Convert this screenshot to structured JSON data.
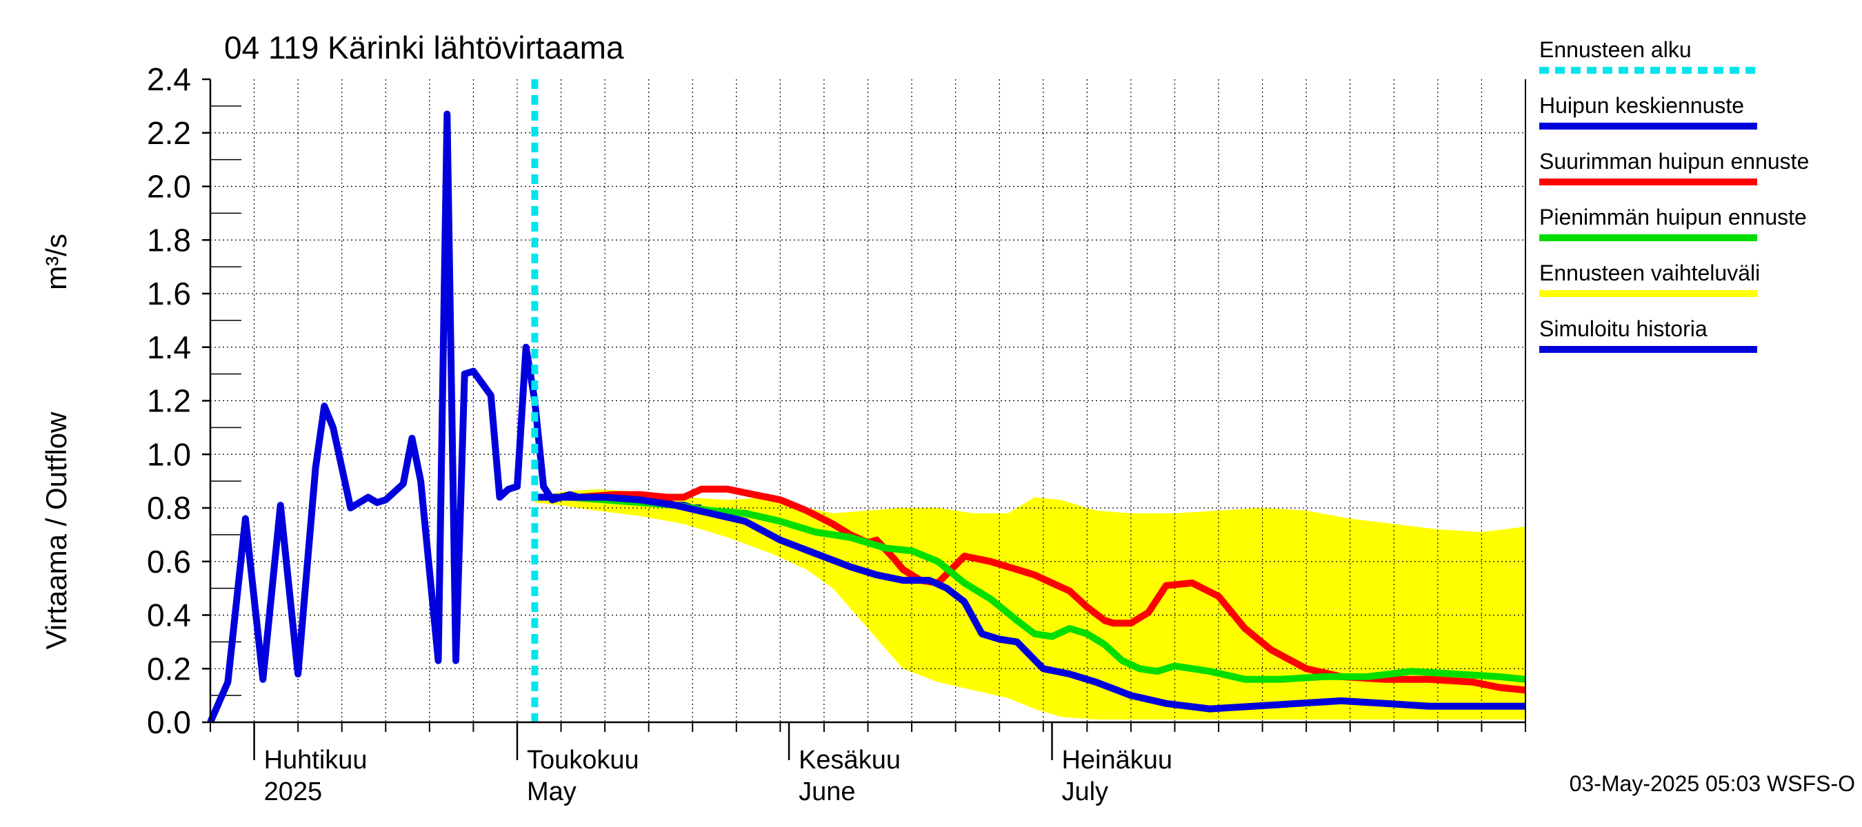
{
  "chart_data": {
    "type": "line",
    "title": "04 119 Kärinki lähtövirtaama",
    "ylabel": "Virtaama / Outflow",
    "yunit": "m³/s",
    "ylim": [
      0,
      2.4
    ],
    "yticks": [
      "0.0",
      "0.2",
      "0.4",
      "0.6",
      "0.8",
      "1.0",
      "1.2",
      "1.4",
      "1.6",
      "1.8",
      "2.0",
      "2.2",
      "2.4"
    ],
    "xlim": [
      "2025-03-27",
      "2025-08-24"
    ],
    "grid": true,
    "legend_position": "right",
    "month_labels": [
      {
        "date": "2025-04-01",
        "fi": "Huhtikuu",
        "en": "2025"
      },
      {
        "date": "2025-05-01",
        "fi": "Toukokuu",
        "en": "May"
      },
      {
        "date": "2025-06-01",
        "fi": "Kesäkuu",
        "en": "June"
      },
      {
        "date": "2025-07-01",
        "fi": "Heinäkuu",
        "en": "July"
      }
    ],
    "forecast_start": "2025-05-03",
    "footer": "03-May-2025 05:03 WSFS-O",
    "legend": [
      {
        "label": "Ennusteen alku",
        "color": "#00e5ee",
        "style": "dotted"
      },
      {
        "label": "Huipun keskiennuste",
        "color": "#0000dd",
        "style": "solid"
      },
      {
        "label": "Suurimman huipun ennuste",
        "color": "#ff0000",
        "style": "solid"
      },
      {
        "label": "Pienimmän huipun ennuste",
        "color": "#00dd00",
        "style": "solid"
      },
      {
        "label": "Ennusteen vaihteluväli",
        "color": "#ffff00",
        "style": "solid"
      },
      {
        "label": "Simuloitu historia",
        "color": "#0000dd",
        "style": "solid"
      }
    ],
    "band": {
      "name": "Ennusteen vaihteluväli",
      "color": "#ffff00",
      "x": [
        "2025-05-03",
        "2025-05-06",
        "2025-05-10",
        "2025-05-15",
        "2025-05-20",
        "2025-05-25",
        "2025-05-30",
        "2025-06-03",
        "2025-06-06",
        "2025-06-10",
        "2025-06-14",
        "2025-06-18",
        "2025-06-22",
        "2025-06-26",
        "2025-06-29",
        "2025-07-02",
        "2025-07-06",
        "2025-07-10",
        "2025-07-15",
        "2025-07-20",
        "2025-07-25",
        "2025-07-30",
        "2025-08-04",
        "2025-08-09",
        "2025-08-14",
        "2025-08-19",
        "2025-08-24"
      ],
      "upper": [
        0.84,
        0.86,
        0.87,
        0.86,
        0.84,
        0.83,
        0.84,
        0.8,
        0.78,
        0.79,
        0.8,
        0.8,
        0.78,
        0.78,
        0.84,
        0.83,
        0.79,
        0.78,
        0.78,
        0.79,
        0.8,
        0.79,
        0.76,
        0.74,
        0.72,
        0.71,
        0.73
      ],
      "lower": [
        0.82,
        0.81,
        0.79,
        0.77,
        0.74,
        0.69,
        0.63,
        0.57,
        0.5,
        0.35,
        0.2,
        0.15,
        0.12,
        0.09,
        0.05,
        0.02,
        0.01,
        0.01,
        0.01,
        0.01,
        0.01,
        0.01,
        0.01,
        0.01,
        0.01,
        0.01,
        0.01
      ]
    },
    "series": [
      {
        "name": "Simuloitu historia",
        "color": "#0000dd",
        "x": [
          "2025-03-27",
          "2025-03-29",
          "2025-03-31",
          "2025-04-02",
          "2025-04-04",
          "2025-04-06",
          "2025-04-08",
          "2025-04-09",
          "2025-04-10",
          "2025-04-12",
          "2025-04-13",
          "2025-04-14",
          "2025-04-15",
          "2025-04-16",
          "2025-04-18",
          "2025-04-19",
          "2025-04-20",
          "2025-04-22",
          "2025-04-23",
          "2025-04-24",
          "2025-04-25",
          "2025-04-26",
          "2025-04-28",
          "2025-04-29",
          "2025-04-30",
          "2025-05-01",
          "2025-05-02",
          "2025-05-03",
          "2025-05-04",
          "2025-05-05",
          "2025-05-06",
          "2025-05-07",
          "2025-05-08",
          "2025-05-09",
          "2025-05-10",
          "2025-05-11",
          "2025-05-12",
          "2025-05-14",
          "2025-05-15",
          "2025-05-16",
          "2025-05-17",
          "2025-05-18",
          "2025-05-19",
          "2025-05-20",
          "2025-05-21",
          "2025-05-22"
        ],
        "y": [
          0.0,
          0.15,
          0.76,
          0.16,
          0.81,
          0.18,
          0.95,
          1.18,
          1.1,
          0.8,
          0.82,
          0.84,
          0.82,
          0.83,
          0.89,
          1.06,
          0.9,
          0.23,
          2.27,
          0.23,
          1.3,
          1.31,
          1.22,
          0.84,
          0.87,
          0.88,
          1.4,
          1.2,
          0.88,
          0.83,
          0.84,
          0.85,
          0.84,
          0.84,
          0.84,
          0.83,
          0.83,
          0.83,
          0.83,
          0.82,
          0.82,
          0.82,
          0.81,
          0.81,
          0.8,
          0.8
        ]
      },
      {
        "name": "Suurimman huipun ennuste",
        "color": "#ff0000",
        "x": [
          "2025-05-03",
          "2025-05-05",
          "2025-05-08",
          "2025-05-12",
          "2025-05-15",
          "2025-05-18",
          "2025-05-20",
          "2025-05-22",
          "2025-05-25",
          "2025-05-28",
          "2025-05-31",
          "2025-06-03",
          "2025-06-06",
          "2025-06-08",
          "2025-06-10",
          "2025-06-11",
          "2025-06-13",
          "2025-06-14",
          "2025-06-16",
          "2025-06-18",
          "2025-06-21",
          "2025-06-24",
          "2025-06-27",
          "2025-06-29",
          "2025-07-01",
          "2025-07-03",
          "2025-07-05",
          "2025-07-07",
          "2025-07-08",
          "2025-07-10",
          "2025-07-12",
          "2025-07-14",
          "2025-07-17",
          "2025-07-20",
          "2025-07-23",
          "2025-07-26",
          "2025-07-30",
          "2025-08-03",
          "2025-08-08",
          "2025-08-13",
          "2025-08-18",
          "2025-08-21",
          "2025-08-24"
        ],
        "y": [
          0.84,
          0.84,
          0.84,
          0.85,
          0.85,
          0.84,
          0.84,
          0.87,
          0.87,
          0.85,
          0.83,
          0.79,
          0.74,
          0.7,
          0.67,
          0.68,
          0.61,
          0.57,
          0.53,
          0.52,
          0.62,
          0.6,
          0.57,
          0.55,
          0.52,
          0.49,
          0.43,
          0.38,
          0.37,
          0.37,
          0.41,
          0.51,
          0.52,
          0.47,
          0.35,
          0.27,
          0.2,
          0.17,
          0.16,
          0.16,
          0.15,
          0.13,
          0.12
        ]
      },
      {
        "name": "Pienimmän huipun ennuste",
        "color": "#00dd00",
        "x": [
          "2025-05-03",
          "2025-05-07",
          "2025-05-11",
          "2025-05-15",
          "2025-05-19",
          "2025-05-23",
          "2025-05-27",
          "2025-05-31",
          "2025-06-04",
          "2025-06-08",
          "2025-06-12",
          "2025-06-15",
          "2025-06-18",
          "2025-06-21",
          "2025-06-24",
          "2025-06-27",
          "2025-06-29",
          "2025-07-01",
          "2025-07-03",
          "2025-07-05",
          "2025-07-07",
          "2025-07-09",
          "2025-07-11",
          "2025-07-13",
          "2025-07-15",
          "2025-07-19",
          "2025-07-23",
          "2025-07-27",
          "2025-08-01",
          "2025-08-06",
          "2025-08-11",
          "2025-08-16",
          "2025-08-21",
          "2025-08-24"
        ],
        "y": [
          0.84,
          0.84,
          0.83,
          0.82,
          0.81,
          0.79,
          0.78,
          0.75,
          0.71,
          0.69,
          0.65,
          0.64,
          0.6,
          0.52,
          0.46,
          0.38,
          0.33,
          0.32,
          0.35,
          0.33,
          0.29,
          0.23,
          0.2,
          0.19,
          0.21,
          0.19,
          0.16,
          0.16,
          0.17,
          0.17,
          0.19,
          0.18,
          0.17,
          0.16
        ]
      },
      {
        "name": "Huipun keskiennuste",
        "color": "#0000dd",
        "x": [
          "2025-05-03",
          "2025-05-07",
          "2025-05-11",
          "2025-05-15",
          "2025-05-19",
          "2025-05-23",
          "2025-05-27",
          "2025-05-31",
          "2025-06-04",
          "2025-06-08",
          "2025-06-11",
          "2025-06-14",
          "2025-06-17",
          "2025-06-19",
          "2025-06-21",
          "2025-06-23",
          "2025-06-25",
          "2025-06-27",
          "2025-06-30",
          "2025-07-03",
          "2025-07-06",
          "2025-07-10",
          "2025-07-14",
          "2025-07-19",
          "2025-07-24",
          "2025-07-29",
          "2025-08-03",
          "2025-08-08",
          "2025-08-13",
          "2025-08-18",
          "2025-08-24"
        ],
        "y": [
          0.84,
          0.84,
          0.84,
          0.83,
          0.81,
          0.78,
          0.75,
          0.68,
          0.63,
          0.58,
          0.55,
          0.53,
          0.53,
          0.5,
          0.45,
          0.33,
          0.31,
          0.3,
          0.2,
          0.18,
          0.15,
          0.1,
          0.07,
          0.05,
          0.06,
          0.07,
          0.08,
          0.07,
          0.06,
          0.06,
          0.06
        ]
      }
    ]
  }
}
